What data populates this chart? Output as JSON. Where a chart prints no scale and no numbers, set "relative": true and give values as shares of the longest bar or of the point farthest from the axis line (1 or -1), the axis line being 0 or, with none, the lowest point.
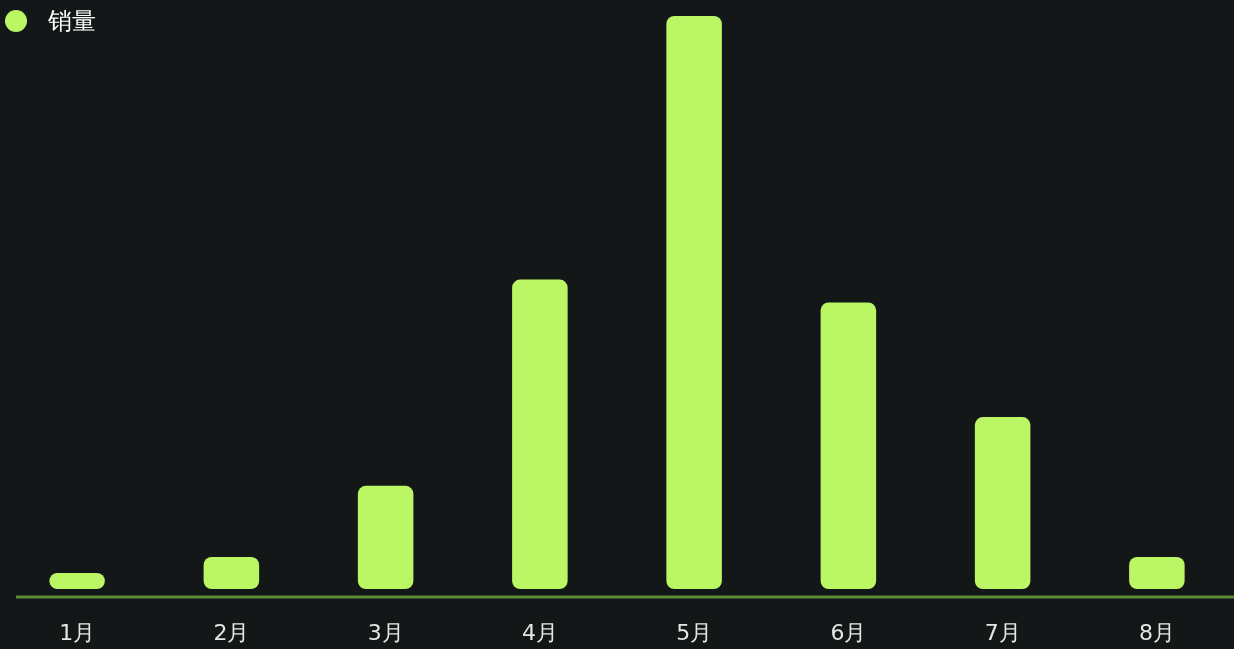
{
  "chart_data": {
    "type": "bar",
    "relative": true,
    "legend": "top left",
    "categories": [
      "1月",
      "2月",
      "3月",
      "4月",
      "5月",
      "6月",
      "7月",
      "8月"
    ],
    "series": [
      {
        "name": "销量",
        "color": "#bbf764",
        "values": [
          0.028,
          0.056,
          0.18,
          0.54,
          1,
          0.5,
          0.3,
          0.056
        ]
      }
    ]
  }
}
